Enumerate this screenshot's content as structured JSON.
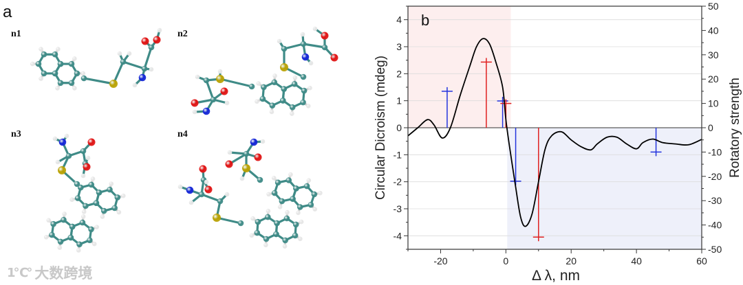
{
  "panel_a": {
    "label": "a",
    "structures": [
      {
        "label": "n1"
      },
      {
        "label": "n2"
      },
      {
        "label": "n3"
      },
      {
        "label": "n4"
      }
    ],
    "atom_colors": {
      "C": "#3f8b87",
      "H": "#e6e6e6",
      "S": "#b9a204",
      "O": "#e01414",
      "N": "#1426d6"
    }
  },
  "watermark": {
    "logo": "1℃°",
    "text": "大数跨境"
  },
  "chart_data": {
    "type": "line",
    "panel_label": "b",
    "xlabel": "Δ λ, nm",
    "ylabel": "Circular Dicroism (mdeg)",
    "ylabel_right": "Rotatory strength",
    "xlim": [
      -30,
      60
    ],
    "ylim": [
      -4.5,
      4.5
    ],
    "ylim_right": [
      -50,
      50
    ],
    "xticks": [
      "-20",
      "0",
      "20",
      "40",
      "60"
    ],
    "yticks": [
      "-4",
      "-3",
      "-2",
      "-1",
      "0",
      "1",
      "2",
      "3",
      "4"
    ],
    "yticks_right": [
      "-50",
      "-40",
      "-30",
      "-20",
      "-10",
      "0",
      "10",
      "20",
      "30",
      "40",
      "50"
    ],
    "grid": "horizontal",
    "shading": [
      {
        "color": "#fdeeee",
        "x": [
          -30,
          1.5
        ],
        "y": "positive"
      },
      {
        "color": "#eef0fa",
        "x": [
          0.4,
          60
        ],
        "y": "negative"
      }
    ],
    "curve": {
      "color": "#000000",
      "x": [
        -30,
        -27,
        -24,
        -22,
        -19.5,
        -17,
        -14,
        -11,
        -9,
        -7,
        -5,
        -3,
        -1,
        0,
        1,
        3,
        4.5,
        6,
        8,
        10,
        12,
        14,
        17,
        20,
        23,
        26,
        28,
        31,
        34,
        37,
        40,
        42,
        45,
        48,
        52,
        56,
        60
      ],
      "y": [
        -0.3,
        0.0,
        0.3,
        0.1,
        -0.38,
        0.0,
        1.2,
        2.3,
        3.0,
        3.3,
        3.1,
        2.4,
        1.5,
        0.3,
        -0.6,
        -2.2,
        -3.3,
        -3.65,
        -3.2,
        -2.0,
        -0.8,
        -0.3,
        -0.15,
        -0.45,
        -0.7,
        -0.82,
        -0.6,
        -0.35,
        -0.35,
        -0.6,
        -0.78,
        -0.55,
        -0.42,
        -0.55,
        -0.6,
        -0.63,
        -0.43
      ]
    },
    "sticks": [
      {
        "x": -18,
        "strength": 15,
        "color": "#2233dd"
      },
      {
        "x": -6,
        "strength": 27,
        "color": "#e02020"
      },
      {
        "x": -1,
        "strength": 11,
        "color": "#2233dd"
      },
      {
        "x": 0,
        "strength": 10,
        "color": "#e02020"
      },
      {
        "x": 3,
        "strength": -22,
        "color": "#2233dd"
      },
      {
        "x": 10,
        "strength": -45,
        "color": "#e02020"
      },
      {
        "x": 46,
        "strength": -10,
        "color": "#2233dd"
      }
    ]
  }
}
